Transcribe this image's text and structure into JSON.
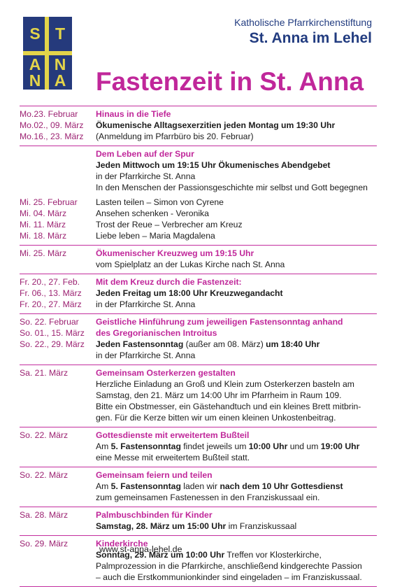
{
  "logo": {
    "letters": [
      "S",
      "T",
      "A",
      "N",
      "N",
      "A"
    ]
  },
  "org": {
    "line1": "Katholische Pfarrkirchenstiftung",
    "line2": "St. Anna im Lehel"
  },
  "title": "Fastenzeit in St. Anna",
  "schedule": [
    {
      "dates": [
        "Mo.23. Februar",
        "Mo.02., 09. März",
        "Mo.16., 23. März"
      ],
      "lines": [
        [
          {
            "t": "Hinaus in die Tiefe",
            "s": "head"
          }
        ],
        [
          {
            "t": "Ökumenische Alltagsexerzitien jeden Montag um 19:30 Uhr",
            "s": "b"
          }
        ],
        [
          {
            "t": "(Anmeldung im Pfarrbüro bis 20. Februar)"
          }
        ]
      ]
    },
    {
      "sep": false,
      "dates": [],
      "lines": [
        [
          {
            "t": "Dem Leben auf der Spur",
            "s": "head"
          }
        ],
        [
          {
            "t": "Jeden Mittwoch um 19:15 Uhr Ökumenisches Abendgebet",
            "s": "b"
          }
        ],
        [
          {
            "t": "in der Pfarrkirche St. Anna"
          }
        ],
        [
          {
            "t": "In den Menschen der Passionsgeschichte mir selbst und Gott begegnen"
          }
        ]
      ]
    },
    {
      "dates": [
        "Mi. 25. Februar",
        "Mi. 04. März",
        "Mi. 11. März",
        "Mi. 18. März"
      ],
      "lines": [
        [
          {
            "t": "Lasten teilen – Simon von Cyrene"
          }
        ],
        [
          {
            "t": "Ansehen schenken - Veronika"
          }
        ],
        [
          {
            "t": "Trost der Reue – Verbrecher am Kreuz"
          }
        ],
        [
          {
            "t": "Liebe leben – Maria Magdalena"
          }
        ]
      ]
    },
    {
      "dates": [
        "Mi. 25. März"
      ],
      "lines": [
        [
          {
            "t": "Ökumenischer Kreuzweg um 19:15 Uhr",
            "s": "head"
          }
        ],
        [
          {
            "t": "vom Spielplatz an der Lukas Kirche nach St. Anna"
          }
        ]
      ]
    },
    {
      "dates": [
        "Fr.  20., 27. Feb.",
        "Fr.  06., 13. März",
        "Fr.  20., 27. März"
      ],
      "lines": [
        [
          {
            "t": "Mit dem Kreuz durch die Fastenzeit:",
            "s": "head"
          }
        ],
        [
          {
            "t": "Jeden Freitag um 18:00 Uhr Kreuzwegandacht",
            "s": "b"
          }
        ],
        [
          {
            "t": "in der Pfarrkirche St. Anna"
          }
        ]
      ]
    },
    {
      "dates": [
        "So. 22. Februar",
        "So. 01., 15. März",
        "So. 22., 29. März"
      ],
      "lines": [
        [
          {
            "t": "Geistliche Hinführung zum jeweiligen Fastensonntag anhand",
            "s": "head"
          }
        ],
        [
          {
            "t": "des Gregorianischen Introitus",
            "s": "head"
          }
        ],
        [
          {
            "t": "Jeden Fastensonntag",
            "s": "b"
          },
          {
            "t": " (außer am 08. März) "
          },
          {
            "t": "um 18:40 Uhr",
            "s": "b"
          }
        ],
        [
          {
            "t": "in der Pfarrkirche St. Anna"
          }
        ]
      ]
    },
    {
      "dates": [
        "Sa. 21. März"
      ],
      "lines": [
        [
          {
            "t": "Gemeinsam Osterkerzen gestalten",
            "s": "head"
          }
        ],
        [
          {
            "t": "Herzliche Einladung an Groß und Klein zum Osterkerzen basteln am"
          }
        ],
        [
          {
            "t": "Samstag, den 21. März um 14:00 Uhr im Pfarrheim in Raum 109."
          }
        ],
        [
          {
            "t": "Bitte ein Obstmesser, ein Gästehandtuch und ein kleines Brett mitbrin-"
          }
        ],
        [
          {
            "t": "gen. Für die Kerze bitten wir um einen kleinen Unkostenbeitrag."
          }
        ]
      ]
    },
    {
      "dates": [
        "So. 22. März"
      ],
      "lines": [
        [
          {
            "t": "Gottesdienste mit erweitertem Bußteil",
            "s": "head"
          }
        ],
        [
          {
            "t": "Am "
          },
          {
            "t": "5. Fastensonntag",
            "s": "b"
          },
          {
            "t": " findet jeweils um "
          },
          {
            "t": "10:00 Uhr",
            "s": "b"
          },
          {
            "t": " und um "
          },
          {
            "t": "19:00 Uhr",
            "s": "b"
          }
        ],
        [
          {
            "t": "eine Messe mit erweitertem Bußteil statt."
          }
        ]
      ]
    },
    {
      "dates": [
        "So. 22. März"
      ],
      "lines": [
        [
          {
            "t": "Gemeinsam feiern und teilen",
            "s": "head"
          }
        ],
        [
          {
            "t": "Am "
          },
          {
            "t": "5. Fastensonntag",
            "s": "b"
          },
          {
            "t": " laden wir "
          },
          {
            "t": "nach dem 10 Uhr Gottesdienst",
            "s": "b"
          }
        ],
        [
          {
            "t": "zum gemeinsamen Fastenessen in den Franziskussaal ein."
          }
        ]
      ]
    },
    {
      "dates": [
        "Sa. 28. März"
      ],
      "lines": [
        [
          {
            "t": "Palmbuschbinden für Kinder",
            "s": "head"
          }
        ],
        [
          {
            "t": "Samstag, 28. März  um 15:00 Uhr",
            "s": "b"
          },
          {
            "t": " im Franziskussaal"
          }
        ]
      ]
    },
    {
      "dates": [
        "So. 29. März"
      ],
      "lines": [
        [
          {
            "t": "Kinderkirche",
            "s": "head"
          }
        ],
        [
          {
            "t": "Sonntag, 29. März um 10:00 Uhr",
            "s": "b"
          },
          {
            "t": " Treffen vor Klosterkirche,"
          }
        ],
        [
          {
            "t": "Palmprozession in die Pfarrkirche, anschließend kindgerechte Passion"
          }
        ],
        [
          {
            "t": "– auch die Erstkommunionkinder sind eingeladen – im Franziskussaal."
          }
        ]
      ]
    }
  ],
  "footer": {
    "website": "www.st-anna-lehel.de"
  },
  "colors": {
    "accent": "#c0279a",
    "navy": "#223c80",
    "logo_bg": "#253a7c",
    "logo_gold": "#e3d44a"
  }
}
